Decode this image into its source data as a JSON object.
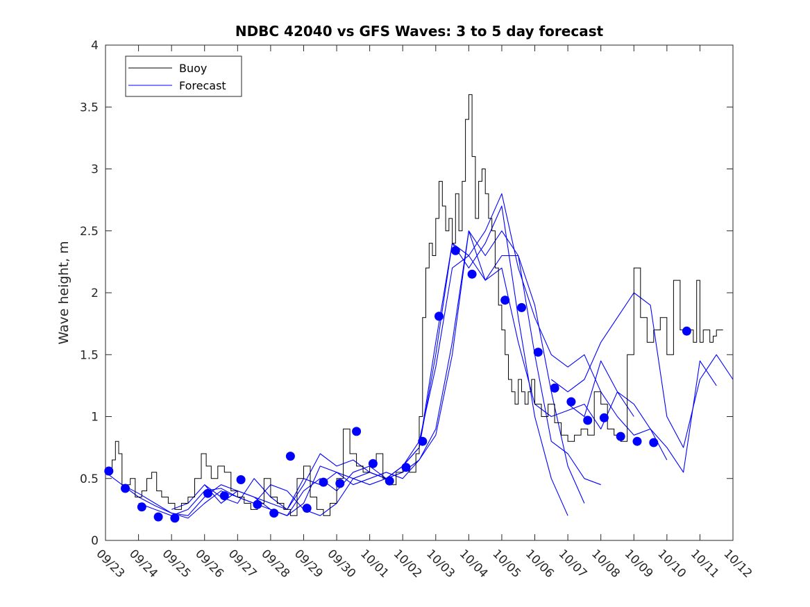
{
  "chart_data": {
    "type": "line",
    "title": "NDBC 42040 vs GFS Waves: 3 to 5 day forecast",
    "xlabel": "",
    "ylabel": "Wave height, m",
    "xlim": [
      0,
      19
    ],
    "ylim": [
      0,
      4
    ],
    "grid": false,
    "categories": [
      "09/23",
      "09/24",
      "09/25",
      "09/26",
      "09/27",
      "09/28",
      "09/29",
      "09/30",
      "10/01",
      "10/02",
      "10/03",
      "10/04",
      "10/05",
      "10/06",
      "10/07",
      "10/08",
      "10/09",
      "10/10",
      "10/11",
      "10/12"
    ],
    "yticks": [
      "0",
      "0.5",
      "1",
      "1.5",
      "2",
      "2.5",
      "3",
      "3.5",
      "4"
    ],
    "legend": {
      "position": "top-left",
      "entries": [
        "Buoy",
        "Forecast"
      ]
    },
    "colors": {
      "buoy": "#000000",
      "forecast": "#0000ff",
      "axis": "#262626"
    },
    "buoy": {
      "name": "Buoy",
      "x": [
        0,
        0.2,
        0.3,
        0.4,
        0.5,
        0.6,
        0.75,
        0.9,
        1.1,
        1.25,
        1.4,
        1.55,
        1.7,
        1.9,
        2.1,
        2.3,
        2.5,
        2.7,
        2.9,
        3.05,
        3.2,
        3.4,
        3.6,
        3.8,
        4.0,
        4.2,
        4.4,
        4.6,
        4.8,
        5.0,
        5.2,
        5.4,
        5.6,
        5.8,
        6.0,
        6.2,
        6.4,
        6.6,
        6.8,
        7.0,
        7.2,
        7.4,
        7.6,
        7.8,
        8.0,
        8.2,
        8.4,
        8.6,
        8.8,
        9.0,
        9.2,
        9.4,
        9.5,
        9.6,
        9.7,
        9.8,
        9.9,
        10.0,
        10.1,
        10.2,
        10.3,
        10.4,
        10.5,
        10.6,
        10.7,
        10.8,
        10.9,
        11.0,
        11.1,
        11.2,
        11.3,
        11.4,
        11.5,
        11.6,
        11.7,
        11.8,
        11.9,
        12.0,
        12.1,
        12.2,
        12.3,
        12.4,
        12.5,
        12.6,
        12.7,
        12.8,
        12.9,
        13.0,
        13.2,
        13.4,
        13.6,
        13.8,
        14.0,
        14.2,
        14.4,
        14.6,
        14.8,
        15.0,
        15.2,
        15.4,
        15.6,
        15.8,
        16.0,
        16.2,
        16.4,
        16.6,
        16.8,
        17.0,
        17.2,
        17.4,
        17.6,
        17.8,
        17.9,
        18.0,
        18.1,
        18.2,
        18.3,
        18.4,
        18.5,
        18.6,
        18.7
      ],
      "values": [
        0.55,
        0.65,
        0.8,
        0.7,
        0.45,
        0.45,
        0.5,
        0.35,
        0.4,
        0.5,
        0.55,
        0.4,
        0.35,
        0.3,
        0.25,
        0.3,
        0.35,
        0.5,
        0.7,
        0.6,
        0.5,
        0.6,
        0.55,
        0.4,
        0.35,
        0.3,
        0.25,
        0.3,
        0.5,
        0.35,
        0.3,
        0.25,
        0.2,
        0.5,
        0.6,
        0.35,
        0.25,
        0.2,
        0.3,
        0.5,
        0.9,
        0.7,
        0.6,
        0.55,
        0.6,
        0.7,
        0.5,
        0.45,
        0.55,
        0.6,
        0.55,
        0.7,
        1.0,
        1.8,
        2.2,
        2.4,
        2.3,
        2.6,
        2.9,
        2.7,
        2.5,
        2.6,
        2.4,
        2.8,
        2.5,
        2.9,
        3.4,
        3.6,
        3.1,
        2.6,
        2.9,
        3.0,
        2.8,
        2.6,
        2.5,
        2.2,
        1.9,
        1.7,
        1.5,
        1.3,
        1.2,
        1.1,
        1.3,
        1.2,
        1.1,
        1.2,
        1.3,
        1.1,
        1.0,
        1.1,
        0.95,
        0.85,
        0.8,
        0.85,
        0.9,
        0.85,
        1.2,
        1.1,
        0.9,
        0.85,
        0.8,
        1.5,
        2.2,
        1.8,
        1.6,
        1.7,
        1.8,
        1.5,
        2.1,
        1.7,
        1.7,
        1.6,
        2.1,
        1.6,
        1.7,
        1.7,
        1.6,
        1.65,
        1.7,
        1.7,
        1.7
      ]
    },
    "forecast": {
      "name": "Forecast",
      "series": [
        {
          "x": [
            0,
            0.5,
            1.0,
            1.5,
            2.0,
            2.5,
            3.0,
            3.5,
            4.0,
            4.5,
            5.0,
            5.5,
            6.0,
            6.5,
            7.0,
            7.5,
            8.0,
            8.5,
            9.0,
            9.5,
            10.0,
            10.5,
            11.0,
            11.5,
            12.0,
            12.5,
            13.0,
            13.5,
            14.0
          ],
          "values": [
            0.55,
            0.45,
            0.35,
            0.28,
            0.22,
            0.2,
            0.35,
            0.45,
            0.4,
            0.35,
            0.3,
            0.25,
            0.5,
            0.45,
            0.55,
            0.5,
            0.45,
            0.5,
            0.6,
            0.75,
            1.5,
            2.4,
            2.2,
            2.4,
            2.7,
            1.8,
            1.0,
            0.5,
            0.2
          ]
        },
        {
          "x": [
            0.5,
            1.0,
            1.5,
            2.0,
            2.5,
            3.0,
            3.5,
            4.0,
            4.5,
            5.0,
            5.5,
            6.0,
            6.5,
            7.0,
            7.5,
            8.0,
            8.5,
            9.0,
            9.5,
            10.0,
            10.5,
            11.0,
            11.5,
            12.0,
            12.5,
            13.0,
            13.5,
            14.0,
            14.5
          ],
          "values": [
            0.45,
            0.38,
            0.3,
            0.22,
            0.18,
            0.3,
            0.4,
            0.35,
            0.3,
            0.25,
            0.2,
            0.3,
            0.6,
            0.55,
            0.45,
            0.5,
            0.55,
            0.5,
            0.65,
            0.9,
            1.6,
            2.5,
            2.1,
            2.3,
            2.3,
            1.9,
            1.2,
            0.6,
            0.3
          ]
        },
        {
          "x": [
            1.0,
            1.5,
            2.0,
            2.5,
            3.0,
            3.5,
            4.0,
            4.5,
            5.0,
            5.5,
            6.0,
            6.5,
            7.0,
            7.5,
            8.0,
            8.5,
            9.0,
            9.5,
            10.0,
            10.5,
            11.0,
            11.5,
            12.0,
            12.5,
            13.0,
            13.5,
            14.0,
            14.5,
            15.0
          ],
          "values": [
            0.3,
            0.25,
            0.2,
            0.25,
            0.4,
            0.42,
            0.35,
            0.3,
            0.45,
            0.4,
            0.25,
            0.2,
            0.3,
            0.5,
            0.55,
            0.5,
            0.55,
            0.65,
            0.85,
            1.5,
            2.5,
            2.3,
            2.5,
            2.3,
            1.5,
            0.8,
            0.7,
            0.5,
            0.45
          ]
        },
        {
          "x": [
            2.0,
            2.5,
            3.0,
            3.5,
            4.0,
            4.5,
            5.0,
            5.5,
            6.0,
            6.5,
            7.0,
            7.5,
            8.0,
            8.5,
            9.0,
            9.5,
            10.0,
            10.5,
            11.0,
            11.5,
            12.0,
            12.5,
            13.0,
            13.5,
            14.0,
            14.5,
            15.0,
            15.5,
            16.0
          ],
          "values": [
            0.25,
            0.3,
            0.45,
            0.35,
            0.3,
            0.5,
            0.35,
            0.25,
            0.45,
            0.7,
            0.6,
            0.65,
            0.55,
            0.5,
            0.6,
            0.8,
            1.4,
            2.2,
            2.3,
            2.1,
            2.2,
            1.6,
            1.1,
            1.0,
            1.05,
            1.1,
            0.9,
            1.2,
            1.0
          ]
        },
        {
          "x": [
            3.0,
            3.5,
            4.0,
            4.5,
            5.0,
            5.5,
            6.0,
            6.5,
            7.0,
            7.5,
            8.0,
            8.5,
            9.0,
            9.5,
            10.0,
            10.5,
            11.0,
            11.5,
            12.0,
            12.5,
            13.0,
            13.5,
            14.0,
            14.5,
            15.0,
            15.5,
            16.0,
            16.5,
            17.0
          ],
          "values": [
            0.45,
            0.3,
            0.4,
            0.35,
            0.25,
            0.2,
            0.4,
            0.5,
            0.4,
            0.55,
            0.6,
            0.5,
            0.6,
            0.75,
            1.6,
            2.4,
            2.3,
            2.5,
            2.8,
            2.2,
            1.8,
            1.5,
            1.4,
            1.5,
            1.2,
            1.0,
            0.85,
            0.9,
            0.65
          ]
        },
        {
          "x": [
            13.5,
            14.0,
            14.5,
            15.0,
            15.5,
            16.0,
            16.5,
            17.0,
            17.5,
            18.0,
            18.5,
            19.0
          ],
          "values": [
            1.3,
            1.2,
            1.3,
            1.6,
            1.8,
            2.0,
            1.9,
            1.0,
            0.75,
            1.3,
            1.5,
            1.3
          ]
        },
        {
          "x": [
            14.0,
            14.5,
            15.0,
            15.5,
            16.0,
            16.5,
            17.0,
            17.5,
            18.0,
            18.5
          ],
          "values": [
            1.1,
            1.0,
            1.45,
            1.2,
            1.1,
            0.9,
            0.75,
            0.55,
            1.45,
            1.25
          ]
        }
      ],
      "points": {
        "x": [
          0.1,
          0.6,
          1.1,
          1.6,
          2.1,
          3.1,
          3.6,
          4.1,
          4.6,
          5.1,
          5.6,
          6.1,
          6.6,
          7.1,
          7.6,
          8.1,
          8.6,
          9.1,
          9.6,
          10.1,
          10.6,
          11.1,
          12.1,
          12.6,
          13.1,
          13.6,
          14.1,
          14.6,
          15.1,
          15.6,
          16.1,
          16.6,
          17.6
        ],
        "values": [
          0.56,
          0.42,
          0.27,
          0.19,
          0.18,
          0.38,
          0.36,
          0.49,
          0.29,
          0.22,
          0.68,
          0.26,
          0.47,
          0.46,
          0.88,
          0.62,
          0.48,
          0.59,
          0.8,
          1.81,
          2.34,
          2.15,
          1.94,
          1.88,
          1.52,
          1.23,
          1.12,
          0.97,
          0.99,
          0.84,
          0.8,
          0.79,
          1.69
        ]
      }
    }
  }
}
